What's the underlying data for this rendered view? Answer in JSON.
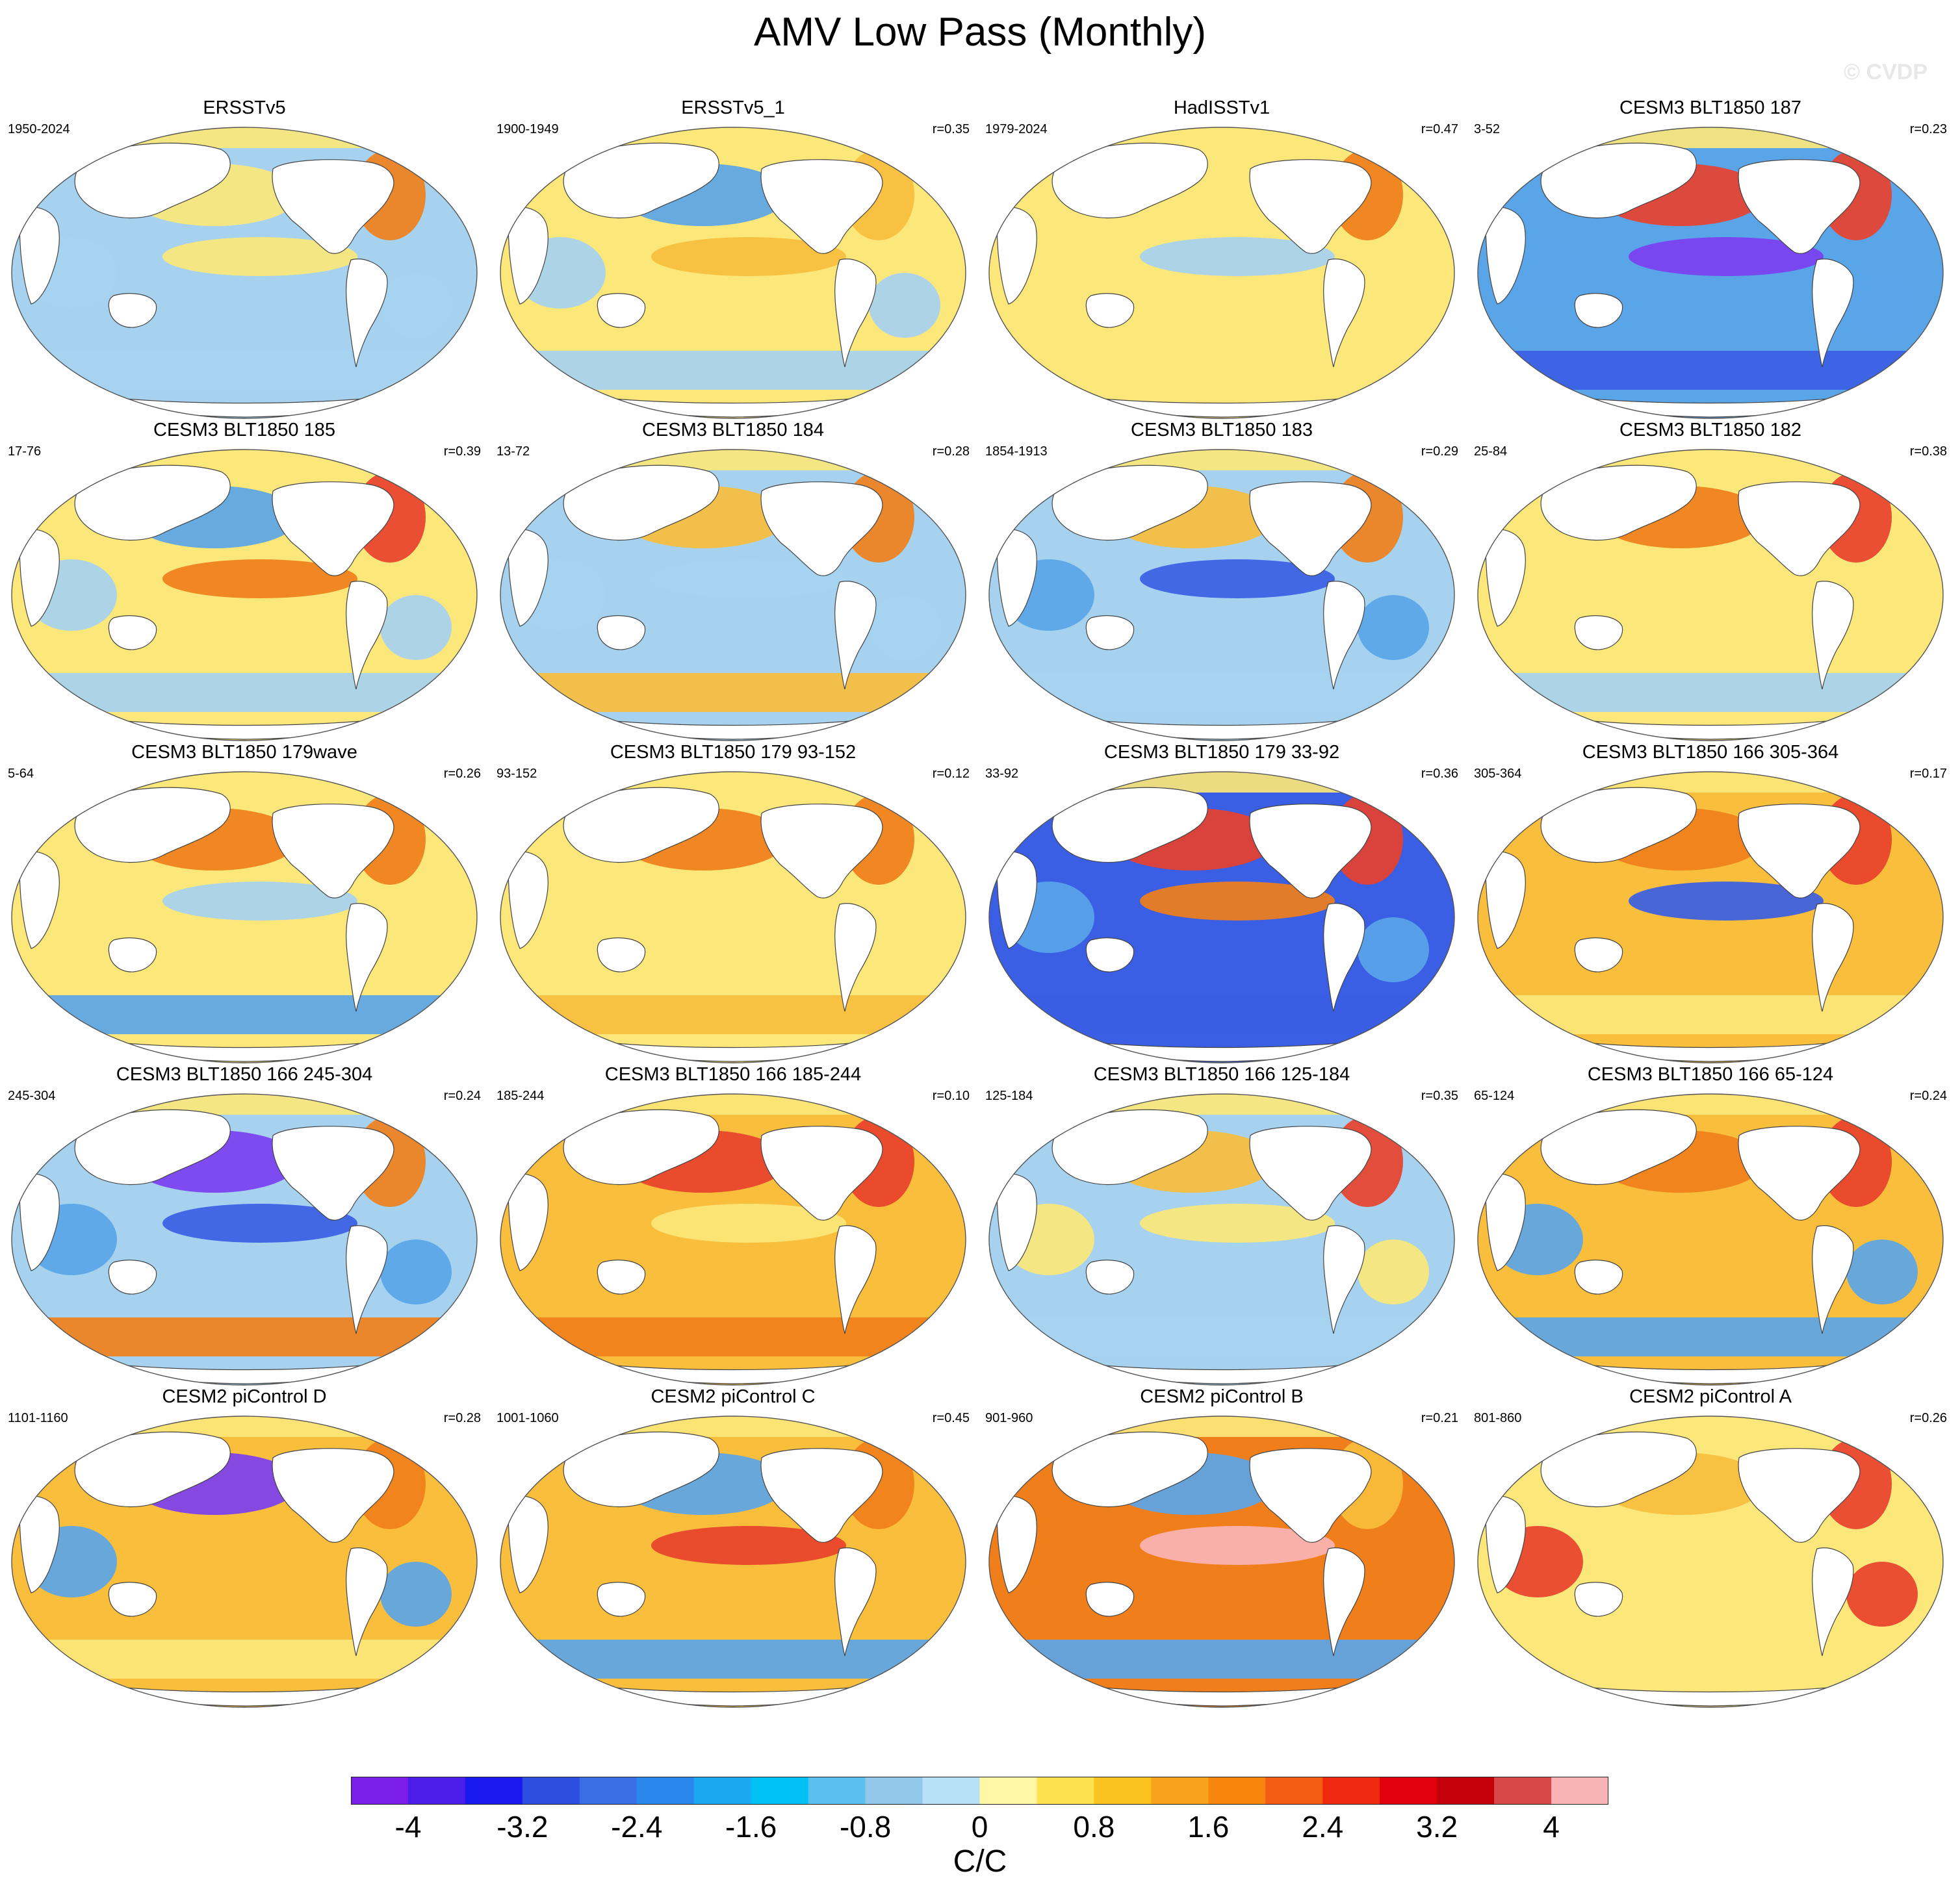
{
  "figure": {
    "title": "AMV Low Pass (Monthly)",
    "watermark": "© CVDP"
  },
  "panels": [
    {
      "title": "ERSSTv5",
      "years": "1950-2024",
      "r": "",
      "pattern": "ocean",
      "colors": {
        "west_pacific": "#a6d2ef",
        "east_pacific": "#fbe77a",
        "north_pacific": "#fbe77a",
        "north_atlantic": "#f07f1b",
        "southern_ocean": "#a6d2ef",
        "indian": "#a6d2ef"
      }
    },
    {
      "title": "ERSSTv5_1",
      "years": "1900-1949",
      "r": "r=0.35",
      "pattern": "ocean",
      "colors": {
        "west_pacific": "#fbe77a",
        "east_pacific": "#f9be3c",
        "north_pacific": "#5aa5e8",
        "north_atlantic": "#f9be3c",
        "southern_ocean": "#a6d2ef",
        "indian": "#a6d2ef"
      }
    },
    {
      "title": "HadISSTv1",
      "years": "1979-2024",
      "r": "r=0.47",
      "pattern": "ocean",
      "colors": {
        "west_pacific": "#fbe77a",
        "east_pacific": "#a6d2ef",
        "north_pacific": "#fbe77a",
        "north_atlantic": "#f07f1b",
        "southern_ocean": "#fbe77a",
        "indian": "#fbe77a"
      }
    },
    {
      "title": "CESM3 BLT1850 187",
      "years": "3-52",
      "r": "r=0.23",
      "pattern": "ocean",
      "colors": {
        "west_pacific": "#5aa5e8",
        "east_pacific": "#7b3ff0",
        "north_pacific": "#e8412c",
        "north_atlantic": "#e8412c",
        "southern_ocean": "#3a5ee4",
        "indian": "#5aa5e8"
      }
    },
    {
      "title": "CESM3 BLT1850 185",
      "years": "17-76",
      "r": "r=0.39",
      "pattern": "ocean",
      "colors": {
        "west_pacific": "#fbe77a",
        "east_pacific": "#f07f1b",
        "north_pacific": "#5aa5e8",
        "north_atlantic": "#e8412c",
        "southern_ocean": "#a6d2ef",
        "indian": "#a6d2ef"
      }
    },
    {
      "title": "CESM3 BLT1850 184",
      "years": "13-72",
      "r": "r=0.28",
      "pattern": "ocean",
      "colors": {
        "west_pacific": "#a6d2ef",
        "east_pacific": "#a6d2ef",
        "north_pacific": "#f9be3c",
        "north_atlantic": "#f07f1b",
        "southern_ocean": "#f9be3c",
        "indian": "#a6d2ef"
      }
    },
    {
      "title": "CESM3 BLT1850 183",
      "years": "1854-1913",
      "r": "r=0.29",
      "pattern": "ocean",
      "colors": {
        "west_pacific": "#a6d2ef",
        "east_pacific": "#3a5ee4",
        "north_pacific": "#f9be3c",
        "north_atlantic": "#f07f1b",
        "southern_ocean": "#a6d2ef",
        "indian": "#5aa5e8"
      }
    },
    {
      "title": "CESM3 BLT1850 182",
      "years": "25-84",
      "r": "r=0.38",
      "pattern": "ocean",
      "colors": {
        "west_pacific": "#fbe77a",
        "east_pacific": "#fbe77a",
        "north_pacific": "#f07f1b",
        "north_atlantic": "#e8412c",
        "southern_ocean": "#a6d2ef",
        "indian": "#fbe77a"
      }
    },
    {
      "title": "CESM3 BLT1850 179wave",
      "years": "5-64",
      "r": "r=0.26",
      "pattern": "ocean",
      "colors": {
        "west_pacific": "#fbe77a",
        "east_pacific": "#a6d2ef",
        "north_pacific": "#f07f1b",
        "north_atlantic": "#f07f1b",
        "southern_ocean": "#5aa5e8",
        "indian": "#fbe77a"
      }
    },
    {
      "title": "CESM3 BLT1850 179 93-152",
      "years": "93-152",
      "r": "r=0.12",
      "pattern": "ocean",
      "colors": {
        "west_pacific": "#fbe77a",
        "east_pacific": "#fbe77a",
        "north_pacific": "#f07f1b",
        "north_atlantic": "#f07f1b",
        "southern_ocean": "#f9be3c",
        "indian": "#fbe77a"
      }
    },
    {
      "title": "CESM3 BLT1850 179 33-92",
      "years": "33-92",
      "r": "r=0.36",
      "pattern": "ocean",
      "colors": {
        "west_pacific": "#3a5ee4",
        "east_pacific": "#f07f1b",
        "north_pacific": "#e8412c",
        "north_atlantic": "#e8412c",
        "southern_ocean": "#3a5ee4",
        "indian": "#5aa5e8"
      }
    },
    {
      "title": "CESM3 BLT1850 166 305-364",
      "years": "305-364",
      "r": "r=0.17",
      "pattern": "ocean",
      "colors": {
        "west_pacific": "#f9be3c",
        "east_pacific": "#3a5ee4",
        "north_pacific": "#f07f1b",
        "north_atlantic": "#e8412c",
        "southern_ocean": "#fbe77a",
        "indian": "#f9be3c"
      }
    },
    {
      "title": "CESM3 BLT1850 166 245-304",
      "years": "245-304",
      "r": "r=0.24",
      "pattern": "ocean",
      "colors": {
        "west_pacific": "#a6d2ef",
        "east_pacific": "#3a5ee4",
        "north_pacific": "#7b3ff0",
        "north_atlantic": "#f07f1b",
        "southern_ocean": "#f07f1b",
        "indian": "#5aa5e8"
      }
    },
    {
      "title": "CESM3 BLT1850 166 185-244",
      "years": "185-244",
      "r": "r=0.10",
      "pattern": "ocean",
      "colors": {
        "west_pacific": "#f9be3c",
        "east_pacific": "#fbe77a",
        "north_pacific": "#e8412c",
        "north_atlantic": "#e8412c",
        "southern_ocean": "#f07f1b",
        "indian": "#f9be3c"
      }
    },
    {
      "title": "CESM3 BLT1850 166 125-184",
      "years": "125-184",
      "r": "r=0.35",
      "pattern": "ocean",
      "colors": {
        "west_pacific": "#a6d2ef",
        "east_pacific": "#fbe77a",
        "north_pacific": "#f9be3c",
        "north_atlantic": "#e8412c",
        "southern_ocean": "#a6d2ef",
        "indian": "#fbe77a"
      }
    },
    {
      "title": "CESM3 BLT1850 166 65-124",
      "years": "65-124",
      "r": "r=0.24",
      "pattern": "ocean",
      "colors": {
        "west_pacific": "#f9be3c",
        "east_pacific": "#f9be3c",
        "north_pacific": "#f07f1b",
        "north_atlantic": "#e8412c",
        "southern_ocean": "#5aa5e8",
        "indian": "#5aa5e8"
      }
    },
    {
      "title": "CESM2 piControl D",
      "years": "1101-1160",
      "r": "r=0.28",
      "pattern": "ocean",
      "colors": {
        "west_pacific": "#f9be3c",
        "east_pacific": "#f9be3c",
        "north_pacific": "#7b3ff0",
        "north_atlantic": "#f07f1b",
        "southern_ocean": "#fbe77a",
        "indian": "#5aa5e8"
      }
    },
    {
      "title": "CESM2 piControl C",
      "years": "1001-1060",
      "r": "r=0.45",
      "pattern": "ocean",
      "colors": {
        "west_pacific": "#f9be3c",
        "east_pacific": "#e8412c",
        "north_pacific": "#5aa5e8",
        "north_atlantic": "#f07f1b",
        "southern_ocean": "#5aa5e8",
        "indian": "#f9be3c"
      }
    },
    {
      "title": "CESM2 piControl B",
      "years": "901-960",
      "r": "r=0.21",
      "pattern": "ocean",
      "colors": {
        "west_pacific": "#f07f1b",
        "east_pacific": "#f8b4b4",
        "north_pacific": "#5aa5e8",
        "north_atlantic": "#f9be3c",
        "southern_ocean": "#5aa5e8",
        "indian": "#f07f1b"
      }
    },
    {
      "title": "CESM2 piControl A",
      "years": "801-860",
      "r": "r=0.26",
      "pattern": "ocean",
      "colors": {
        "west_pacific": "#fbe77a",
        "east_pacific": "#fbe77a",
        "north_pacific": "#f9be3c",
        "north_atlantic": "#e8412c",
        "southern_ocean": "#fbe77a",
        "indian": "#e8412c"
      }
    }
  ],
  "colorbar": {
    "colors": [
      "#7b1fe8",
      "#4a1ee8",
      "#1a1af0",
      "#2e4ee0",
      "#3a6ee6",
      "#2a88ec",
      "#1ba8f0",
      "#00c0f4",
      "#5cc0ee",
      "#92c8ea",
      "#b8e0f6",
      "#fff7a6",
      "#fde14e",
      "#f9c21e",
      "#f7a41c",
      "#f8860e",
      "#f45c16",
      "#f02a10",
      "#e2000c",
      "#c4000a",
      "#d84848",
      "#f8b4b4"
    ],
    "ticks": [
      "-4",
      "-3.2",
      "-2.4",
      "-1.6",
      "-0.8",
      "0",
      "0.8",
      "1.6",
      "2.4",
      "3.2",
      "4"
    ],
    "units": "C/C"
  }
}
